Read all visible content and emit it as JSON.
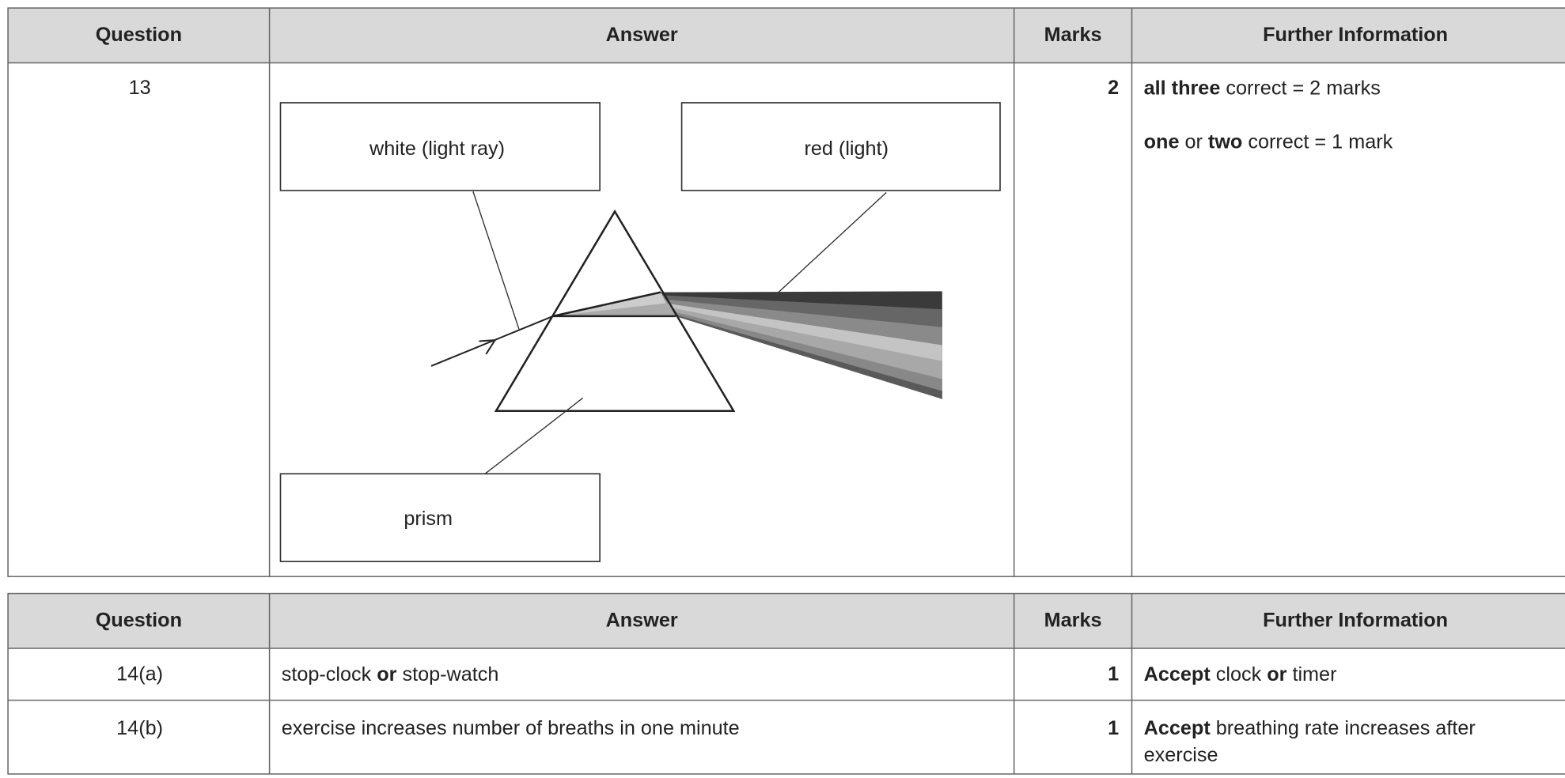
{
  "tables": [
    {
      "header": [
        "Question",
        "Answer",
        "Marks",
        "Further Information"
      ],
      "rows": [
        {
          "question": "13",
          "answer": {
            "labels": [
              "white (light ray)",
              "red (light)",
              "prism"
            ]
          },
          "marks": "2",
          "further": [
            [
              "all three",
              " correct = 2 marks"
            ],
            [
              "one",
              " or ",
              "two",
              " correct = 1 mark"
            ]
          ]
        }
      ]
    },
    {
      "header": [
        "Question",
        "Answer",
        "Marks",
        "Further Information"
      ],
      "rows": [
        {
          "question": "14(a)",
          "answer": [
            "stop-clock ",
            "or",
            " stop-watch"
          ],
          "marks": "1",
          "further": [
            [
              "Accept",
              " clock ",
              "or",
              " timer"
            ]
          ]
        },
        {
          "question": "14(b)",
          "answer": [
            "exercise increases number of breaths in one minute"
          ],
          "marks": "1",
          "further": [
            [
              "Accept",
              " breathing rate increases after"
            ],
            [
              "exercise"
            ]
          ]
        }
      ]
    }
  ]
}
